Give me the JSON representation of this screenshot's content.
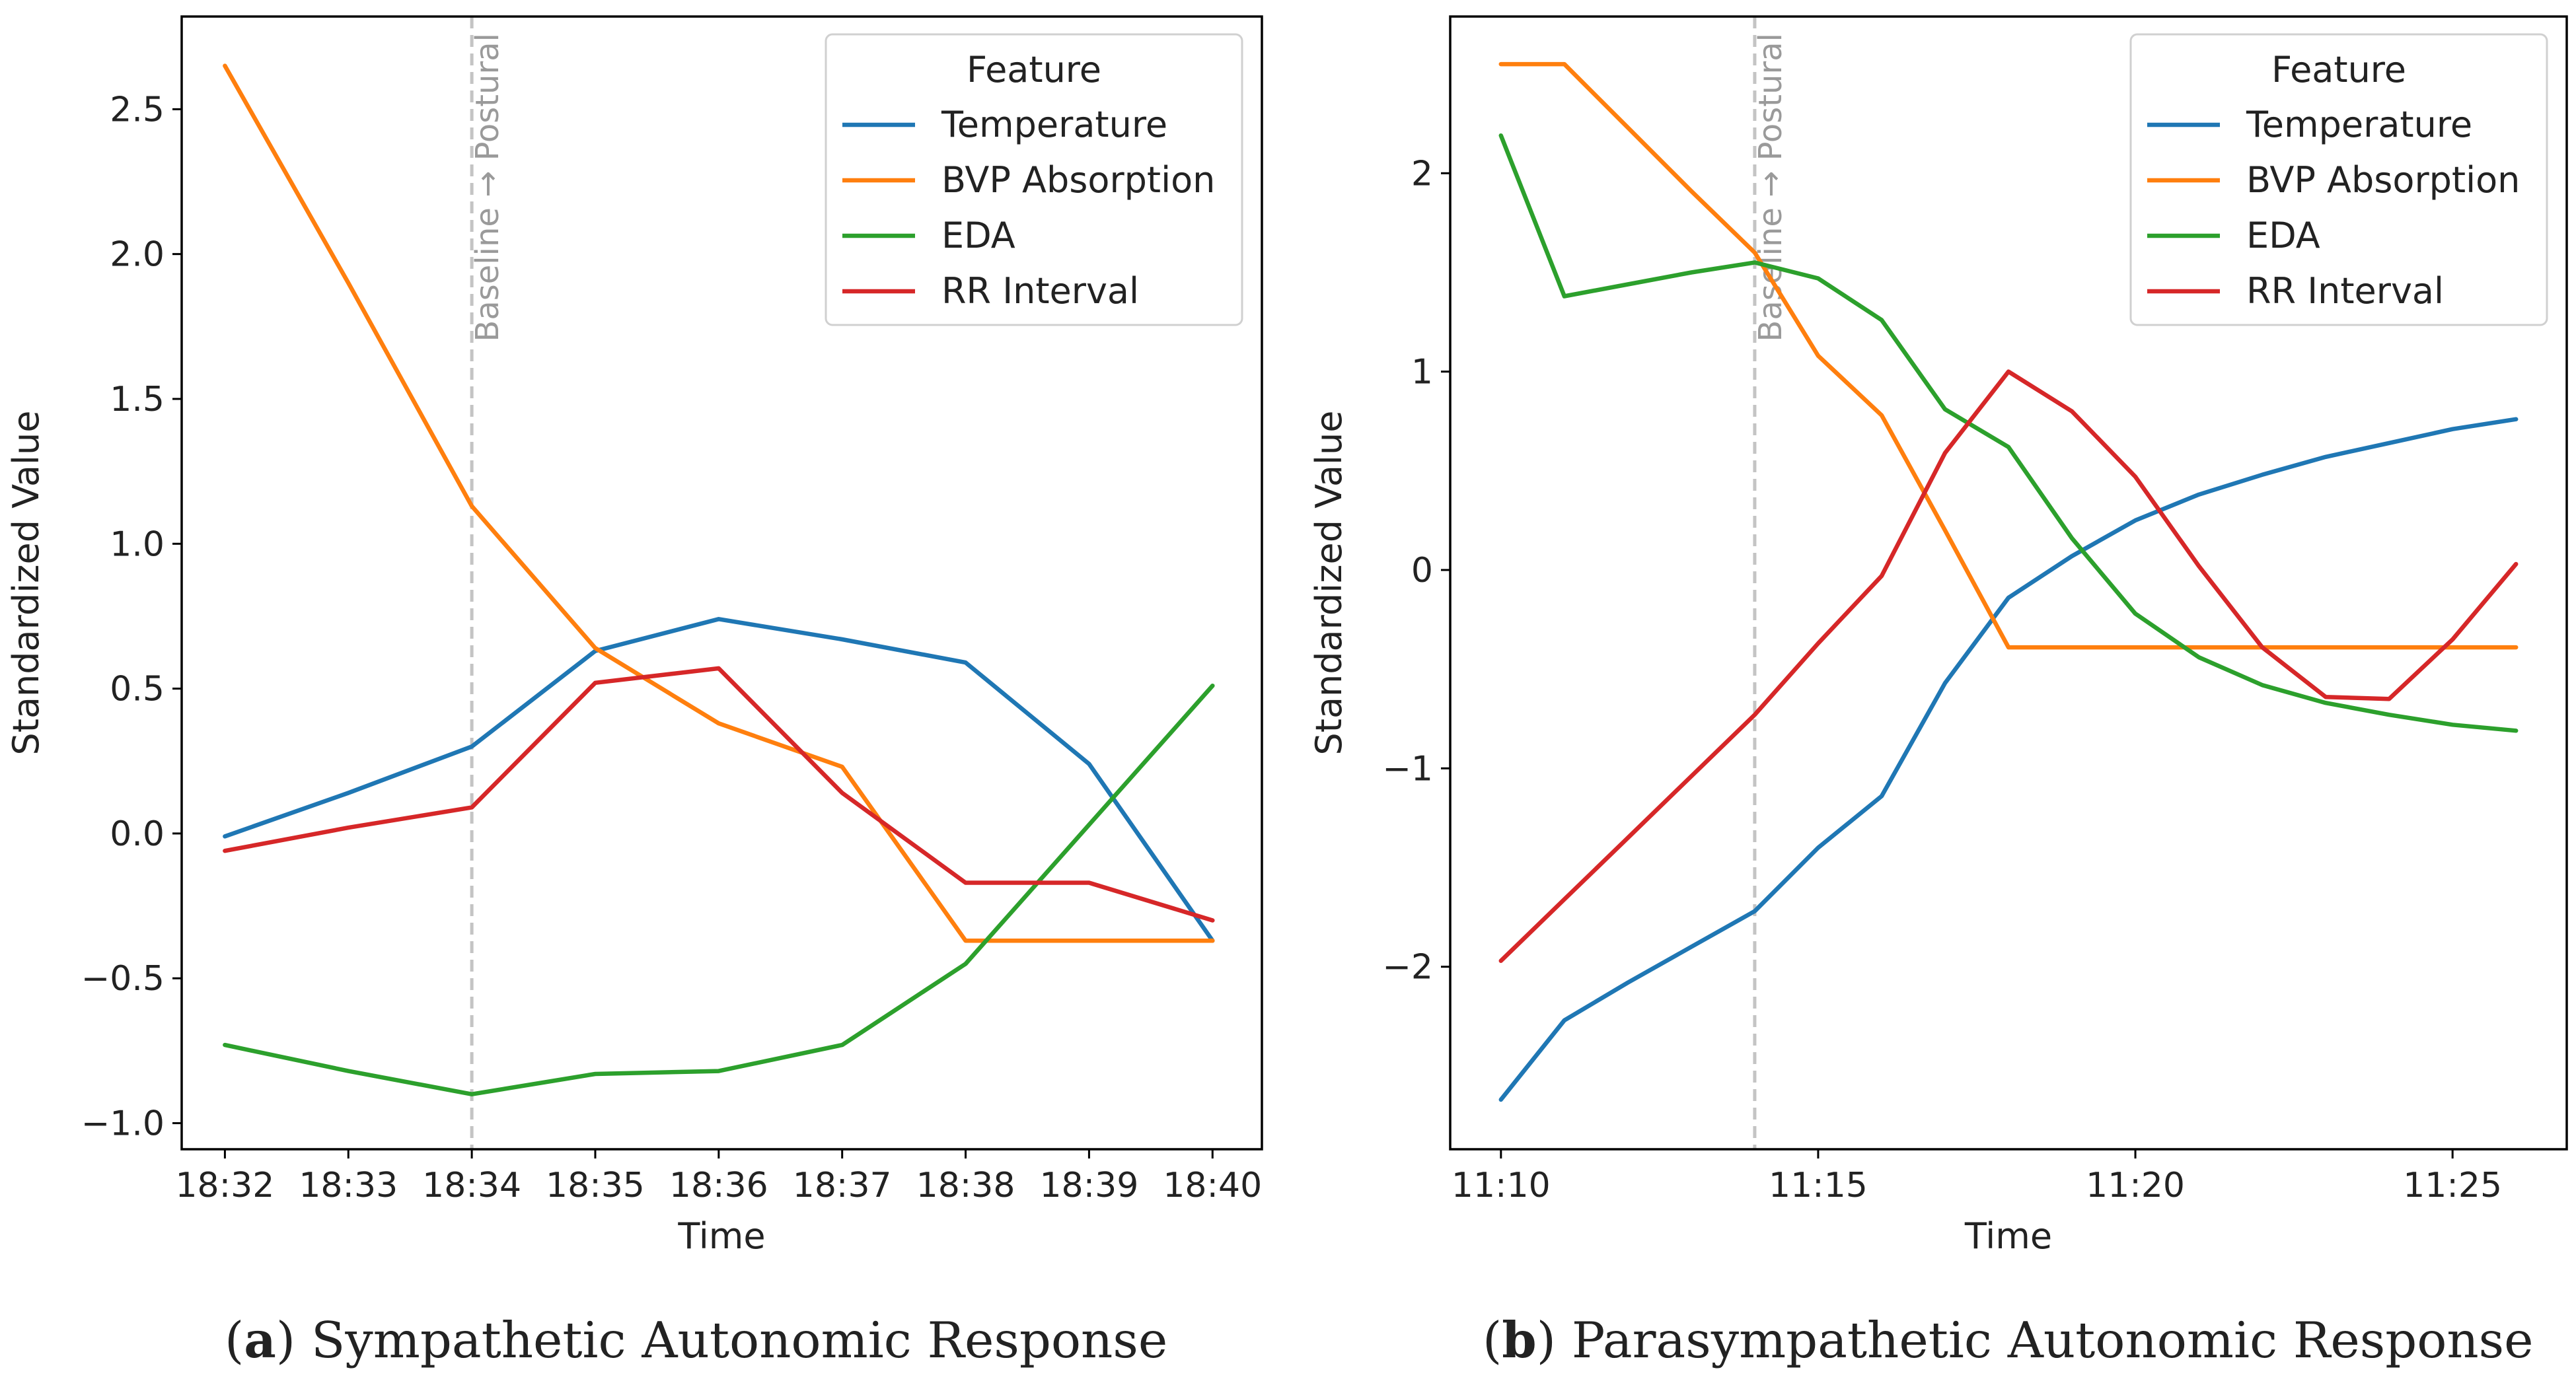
{
  "chart_data": [
    {
      "type": "line",
      "panel": "a",
      "caption_label": "a",
      "caption": "Sympathetic Autonomic Response",
      "xlabel": "Time",
      "ylabel": "Standardized Value",
      "x": [
        "18:32",
        "18:33",
        "18:34",
        "18:35",
        "18:36",
        "18:37",
        "18:38",
        "18:39",
        "18:40"
      ],
      "xticks": [
        "18:32",
        "18:33",
        "18:34",
        "18:35",
        "18:36",
        "18:37",
        "18:38",
        "18:39",
        "18:40"
      ],
      "xlim": [
        -0.35,
        8.4
      ],
      "ylim": [
        -1.09,
        2.82
      ],
      "yticks": [
        "2.5",
        "2.0",
        "1.5",
        "1.0",
        "0.5",
        "0.0",
        "−0.5",
        "−1.0"
      ],
      "ytick_values": [
        2.5,
        2.0,
        1.5,
        1.0,
        0.5,
        0.0,
        -0.5,
        -1.0
      ],
      "marker_x": 2,
      "marker_label": "Baseline → Postural",
      "legend": {
        "title": "Feature",
        "position": "top-right"
      },
      "series": [
        {
          "name": "Temperature",
          "color": "#1f77b4",
          "values": [
            -0.01,
            0.14,
            0.3,
            0.63,
            0.74,
            0.67,
            0.59,
            0.24,
            -0.37
          ]
        },
        {
          "name": "BVP Absorption",
          "color": "#ff7f0e",
          "values": [
            2.65,
            1.9,
            1.13,
            0.64,
            0.38,
            0.23,
            -0.37,
            -0.37,
            -0.37
          ]
        },
        {
          "name": "EDA",
          "color": "#2ca02c",
          "values": [
            -0.73,
            -0.82,
            -0.9,
            -0.83,
            -0.82,
            -0.73,
            -0.45,
            0.03,
            0.51
          ]
        },
        {
          "name": "RR Interval",
          "color": "#d62728",
          "values": [
            -0.06,
            0.02,
            0.09,
            0.52,
            0.57,
            0.14,
            -0.17,
            -0.17,
            -0.3
          ]
        }
      ]
    },
    {
      "type": "line",
      "panel": "b",
      "caption_label": "b",
      "caption": "Parasympathetic Autonomic Response",
      "xlabel": "Time",
      "ylabel": "Standardized Value",
      "x": [
        "11:10",
        "11:11",
        "11:12",
        "11:13",
        "11:14",
        "11:15",
        "11:16",
        "11:17",
        "11:18",
        "11:19",
        "11:20",
        "11:21",
        "11:22",
        "11:23",
        "11:24",
        "11:25",
        "11:26"
      ],
      "xticks": [
        "11:10",
        "11:15",
        "11:20",
        "11:25"
      ],
      "xtick_positions": [
        0,
        5,
        10,
        15
      ],
      "xlim": [
        -0.8,
        16.8
      ],
      "ylim": [
        -2.92,
        2.79
      ],
      "yticks": [
        "2",
        "1",
        "0",
        "−1",
        "−2"
      ],
      "ytick_values": [
        2,
        1,
        0,
        -1,
        -2
      ],
      "marker_x": 4,
      "marker_label": "Baseline → Postural",
      "legend": {
        "title": "Feature",
        "position": "top-right"
      },
      "series": [
        {
          "name": "Temperature",
          "color": "#1f77b4",
          "values": [
            -2.67,
            -2.27,
            -2.08,
            -1.9,
            -1.72,
            -1.4,
            -1.14,
            -0.57,
            -0.14,
            0.07,
            0.25,
            0.38,
            0.48,
            0.57,
            0.64,
            0.71,
            0.76
          ]
        },
        {
          "name": "BVP Absorption",
          "color": "#ff7f0e",
          "values": [
            2.55,
            2.55,
            2.23,
            1.91,
            1.6,
            1.08,
            0.78,
            0.2,
            -0.39,
            -0.39,
            -0.39,
            -0.39,
            -0.39,
            -0.39,
            -0.39,
            -0.39,
            -0.39
          ]
        },
        {
          "name": "EDA",
          "color": "#2ca02c",
          "values": [
            2.19,
            1.38,
            1.44,
            1.5,
            1.55,
            1.47,
            1.26,
            0.81,
            0.62,
            0.16,
            -0.22,
            -0.44,
            -0.58,
            -0.67,
            -0.73,
            -0.78,
            -0.81
          ]
        },
        {
          "name": "RR Interval",
          "color": "#d62728",
          "values": [
            -1.97,
            -1.66,
            -1.35,
            -1.04,
            -0.73,
            -0.37,
            -0.03,
            0.59,
            1.0,
            0.8,
            0.47,
            0.02,
            -0.39,
            -0.64,
            -0.65,
            -0.35,
            0.03
          ]
        }
      ]
    }
  ]
}
